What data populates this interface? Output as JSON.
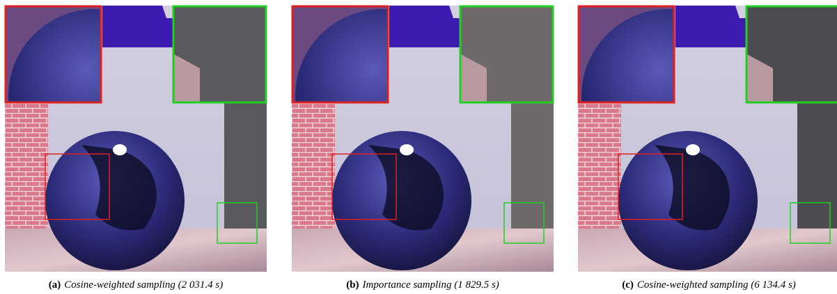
{
  "figure": {
    "panels": [
      {
        "label": "(a)",
        "caption": "Cosine-weighted sampling (2 031.4 s)"
      },
      {
        "label": "(b)",
        "caption": "Importance sampling (1 829.5 s)"
      },
      {
        "label": "(c)",
        "caption": "Cosine-weighted sampling (6 134.4 s)"
      }
    ]
  }
}
